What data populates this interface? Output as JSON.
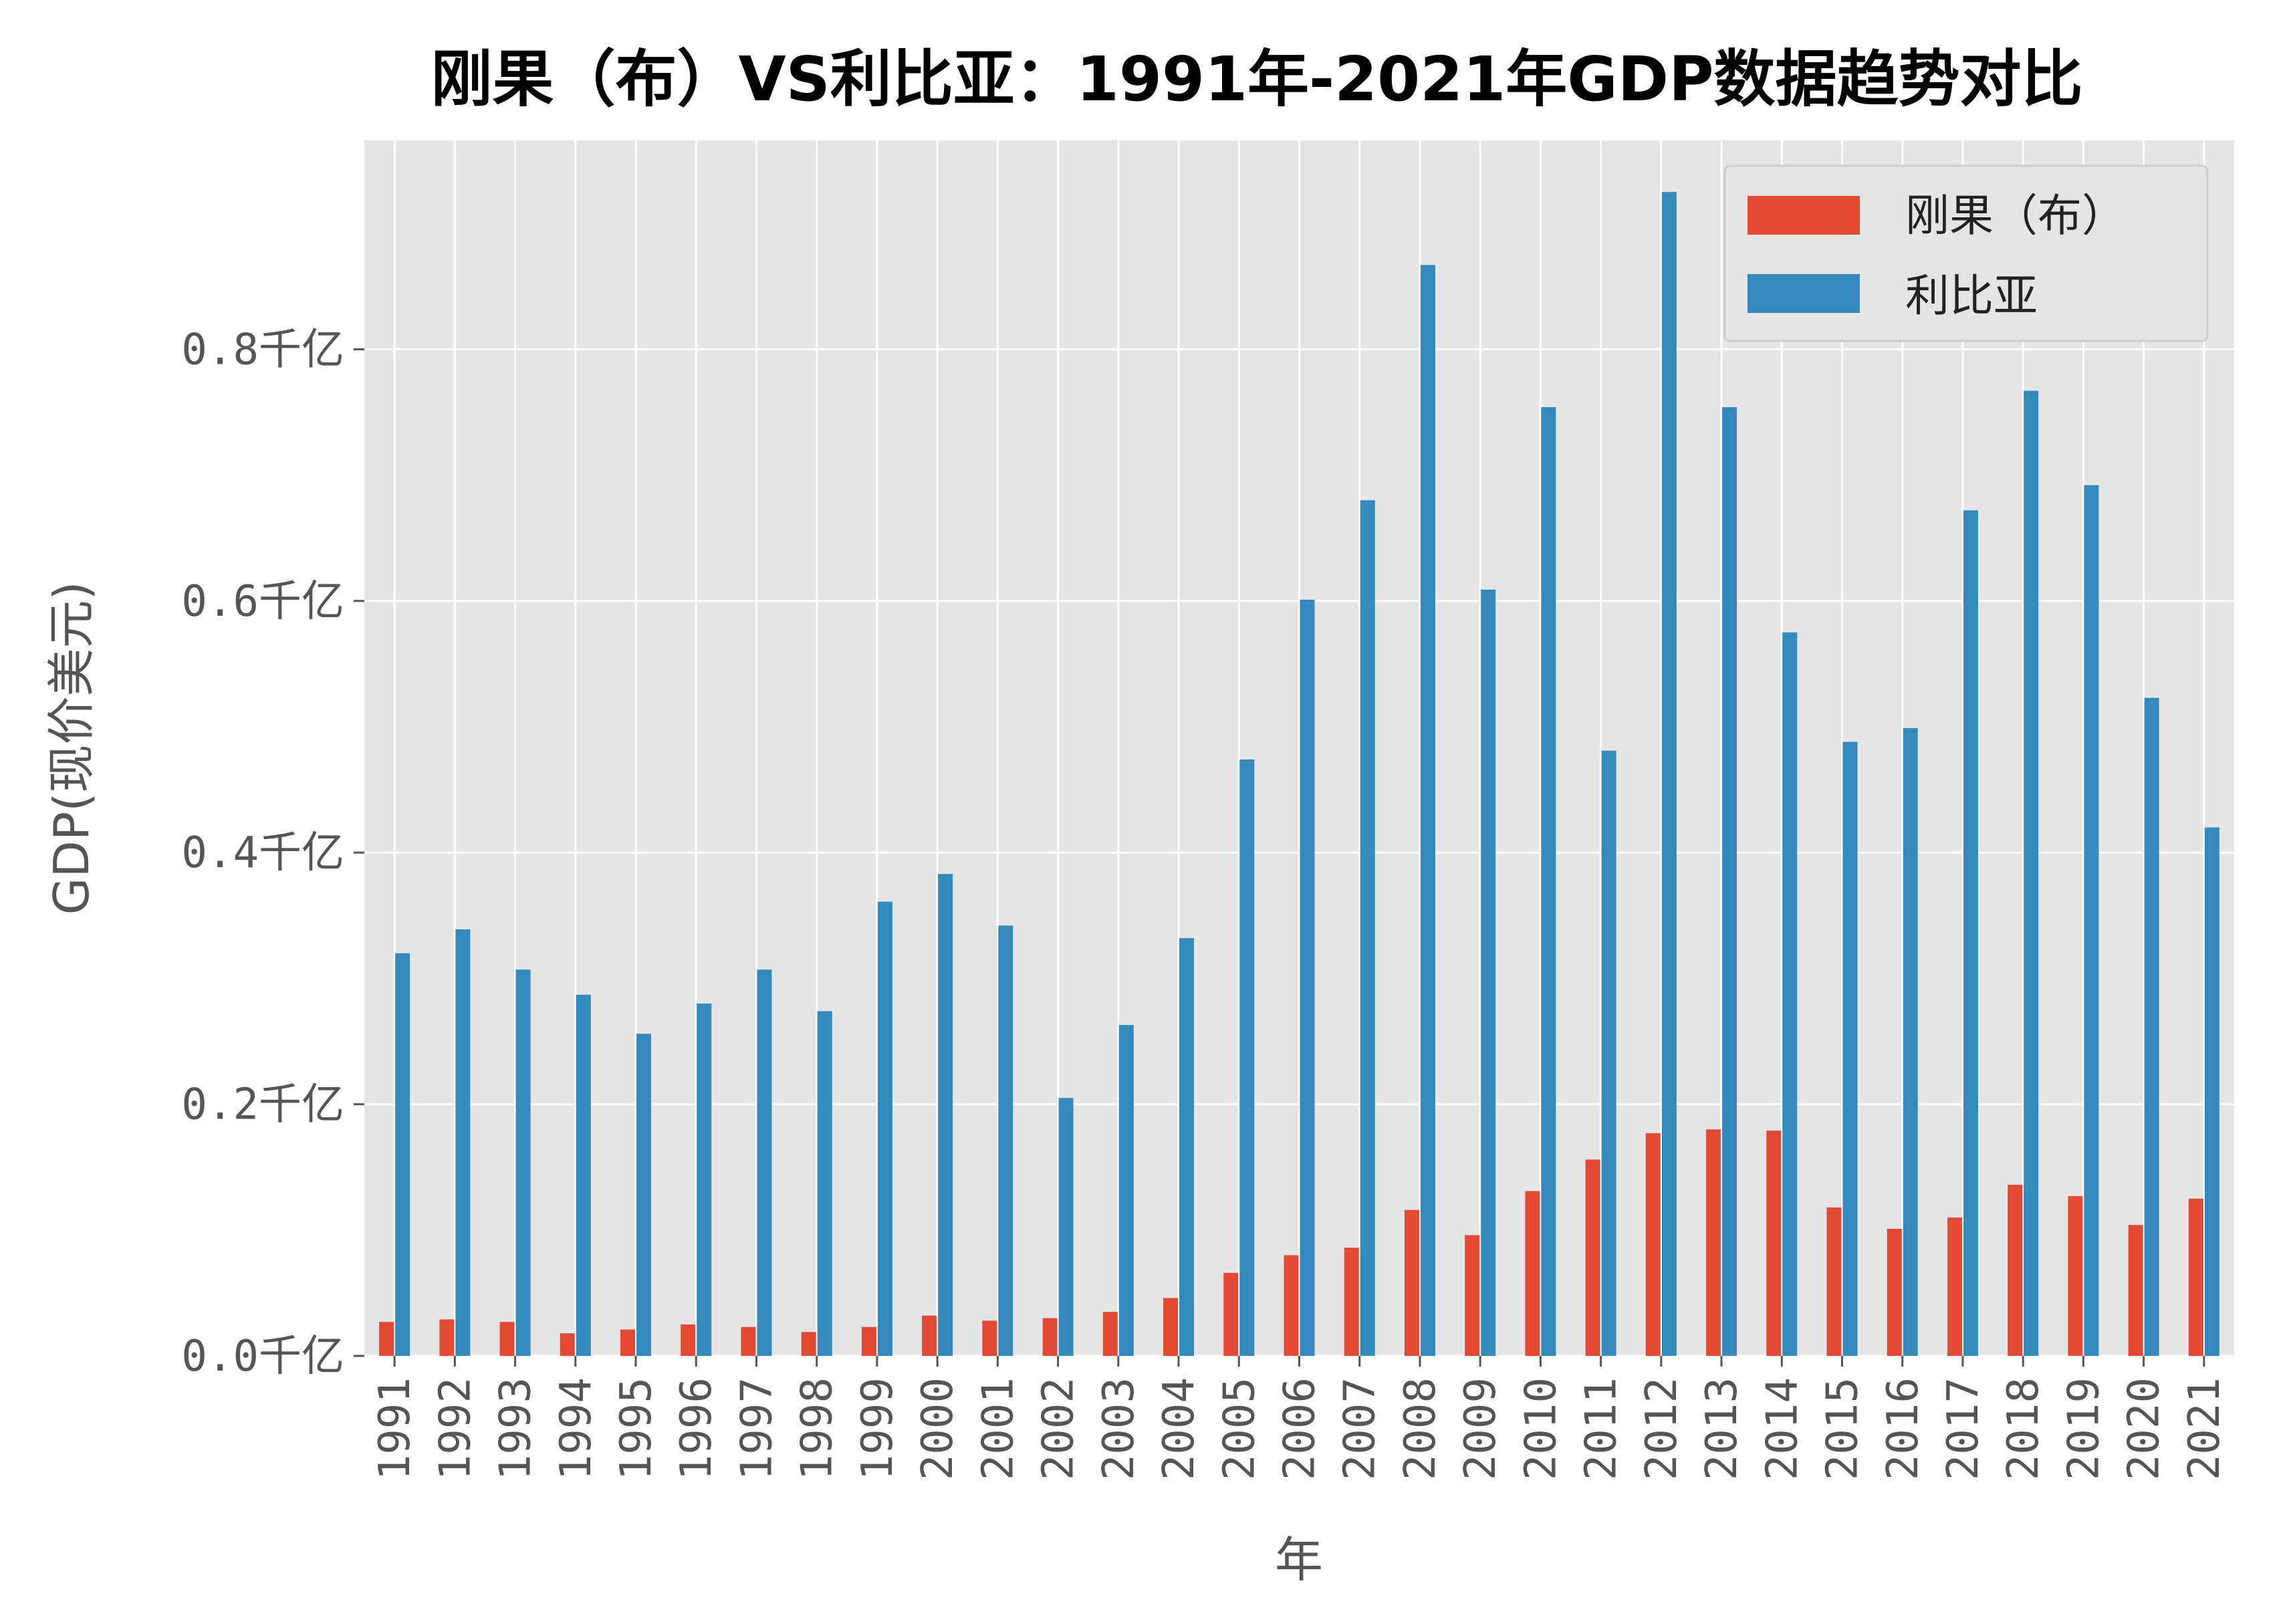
{
  "chart_data": {
    "type": "bar",
    "title": "刚果（布）VS利比亚：1991年-2021年GDP数据趋势对比",
    "xlabel": "年",
    "ylabel": "GDP(现价美元)",
    "categories": [
      "1991",
      "1992",
      "1993",
      "1994",
      "1995",
      "1996",
      "1997",
      "1998",
      "1999",
      "2000",
      "2001",
      "2002",
      "2003",
      "2004",
      "2005",
      "2006",
      "2007",
      "2008",
      "2009",
      "2010",
      "2011",
      "2012",
      "2013",
      "2014",
      "2015",
      "2016",
      "2017",
      "2018",
      "2019",
      "2020",
      "2021"
    ],
    "series": [
      {
        "name": "刚果（布）",
        "color": "#E24A33",
        "values": [
          0.027,
          0.029,
          0.027,
          0.018,
          0.021,
          0.025,
          0.023,
          0.019,
          0.023,
          0.032,
          0.028,
          0.03,
          0.035,
          0.046,
          0.066,
          0.08,
          0.086,
          0.116,
          0.096,
          0.131,
          0.156,
          0.177,
          0.18,
          0.179,
          0.118,
          0.101,
          0.11,
          0.136,
          0.127,
          0.104,
          0.125
        ]
      },
      {
        "name": "利比亚",
        "color": "#348ABD",
        "values": [
          0.32,
          0.339,
          0.307,
          0.287,
          0.256,
          0.28,
          0.307,
          0.274,
          0.361,
          0.383,
          0.342,
          0.205,
          0.263,
          0.332,
          0.474,
          0.601,
          0.68,
          0.867,
          0.609,
          0.754,
          0.481,
          0.925,
          0.754,
          0.575,
          0.488,
          0.499,
          0.672,
          0.767,
          0.692,
          0.523,
          0.42
        ]
      }
    ],
    "ylim": [
      0,
      0.966
    ],
    "yticks": [
      0.0,
      0.2,
      0.4,
      0.6,
      0.8
    ],
    "ytick_labels": [
      "0.0千亿",
      "0.2千亿",
      "0.4千亿",
      "0.6千亿",
      "0.8千亿"
    ],
    "grid": true,
    "legend_position": "top-right",
    "plot_background": "#E5E5E5"
  }
}
